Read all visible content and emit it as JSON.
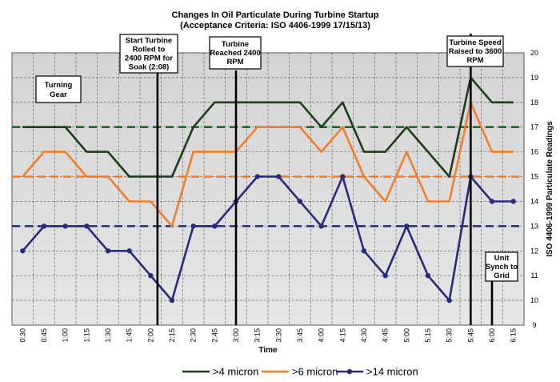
{
  "chart_data": {
    "type": "line",
    "title": "Changes In Oil Particulate During Turbine Startup",
    "subtitle": "(Acceptance Criteria: ISO 4406-1999 17/15/13)",
    "xlabel": "Time",
    "ylabel": "ISO 4406-1999 Particulate Readings",
    "x": [
      "0:30",
      "0:45",
      "1:00",
      "1:15",
      "1:30",
      "1:45",
      "2:00",
      "2:15",
      "2:30",
      "2:45",
      "3:00",
      "3:15",
      "3:30",
      "3:45",
      "4:00",
      "4:15",
      "4:30",
      "4:45",
      "5:00",
      "5:15",
      "5:30",
      "5:45",
      "6:00",
      "6:15"
    ],
    "ylim": [
      9,
      20
    ],
    "yticks": [
      9,
      10,
      11,
      12,
      13,
      14,
      15,
      16,
      17,
      18,
      19,
      20
    ],
    "y_axis_side": "right",
    "grid": true,
    "series": [
      {
        "name": ">4 micron",
        "color": "#1f3d1a",
        "marker": "none",
        "values": [
          17,
          17,
          17,
          16,
          16,
          15,
          15,
          15,
          17,
          18,
          18,
          18,
          18,
          18,
          17,
          18,
          16,
          16,
          17,
          16,
          15,
          19,
          18,
          18
        ]
      },
      {
        "name": ">6 micron",
        "color": "#f07f2c",
        "marker": "none",
        "values": [
          15,
          16,
          16,
          15,
          15,
          14,
          14,
          13,
          16,
          16,
          16,
          17,
          17,
          17,
          16,
          17,
          15,
          14,
          16,
          14,
          14,
          18,
          16,
          16
        ]
      },
      {
        "name": ">14 micron",
        "color": "#2b2a78",
        "marker": "circle",
        "values": [
          12,
          13,
          13,
          13,
          12,
          12,
          11,
          10,
          13,
          13,
          14,
          15,
          15,
          14,
          13,
          15,
          12,
          11,
          13,
          11,
          10,
          15,
          14,
          14
        ]
      }
    ],
    "criteria_lines": [
      {
        "value": 17,
        "color": "#1f6b2a"
      },
      {
        "value": 15,
        "color": "#f07f2c"
      },
      {
        "value": 13,
        "color": "#1e2e7a"
      }
    ],
    "events": [
      {
        "x": 2.08,
        "lines": [
          "Start Turbine",
          "Rolled to",
          "2400 RPM for",
          "Soak (2:08)"
        ]
      },
      {
        "x": 3.0,
        "lines": [
          "Turbine",
          "Reached 2400",
          "RPM"
        ]
      },
      {
        "x": 5.75,
        "lines": [
          "Turbine Speed",
          "Raised to 3600",
          "RPM"
        ]
      },
      {
        "x": 6.0,
        "lines": [
          "Unit",
          "Synch to",
          "Grid"
        ]
      }
    ],
    "annotations": [
      {
        "lines": [
          "Turning",
          "Gear"
        ]
      }
    ],
    "legend_position": "bottom"
  }
}
